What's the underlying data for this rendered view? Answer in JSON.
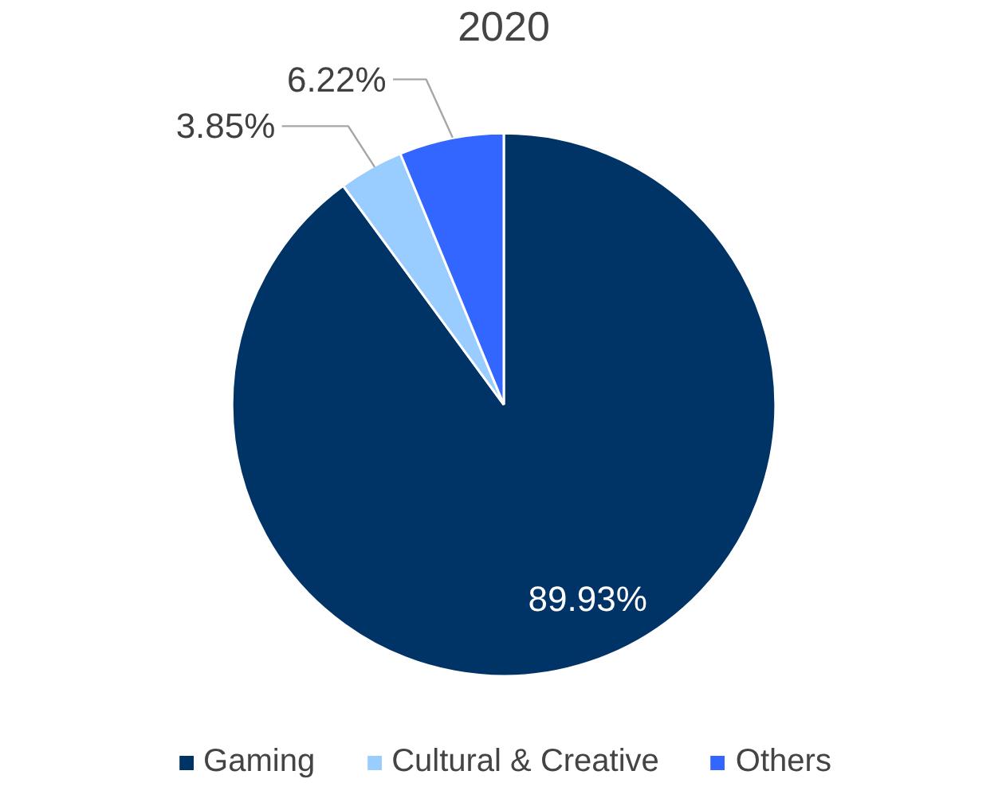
{
  "chart_data": {
    "type": "pie",
    "title": "2020",
    "categories": [
      "Gaming",
      "Cultural & Creative",
      "Others"
    ],
    "values": [
      89.93,
      3.85,
      6.22
    ],
    "colors": [
      "#003366",
      "#99ccff",
      "#3366ff"
    ],
    "value_labels": [
      "89.93%",
      "3.85%",
      "6.22%"
    ],
    "legend": "bottom"
  }
}
